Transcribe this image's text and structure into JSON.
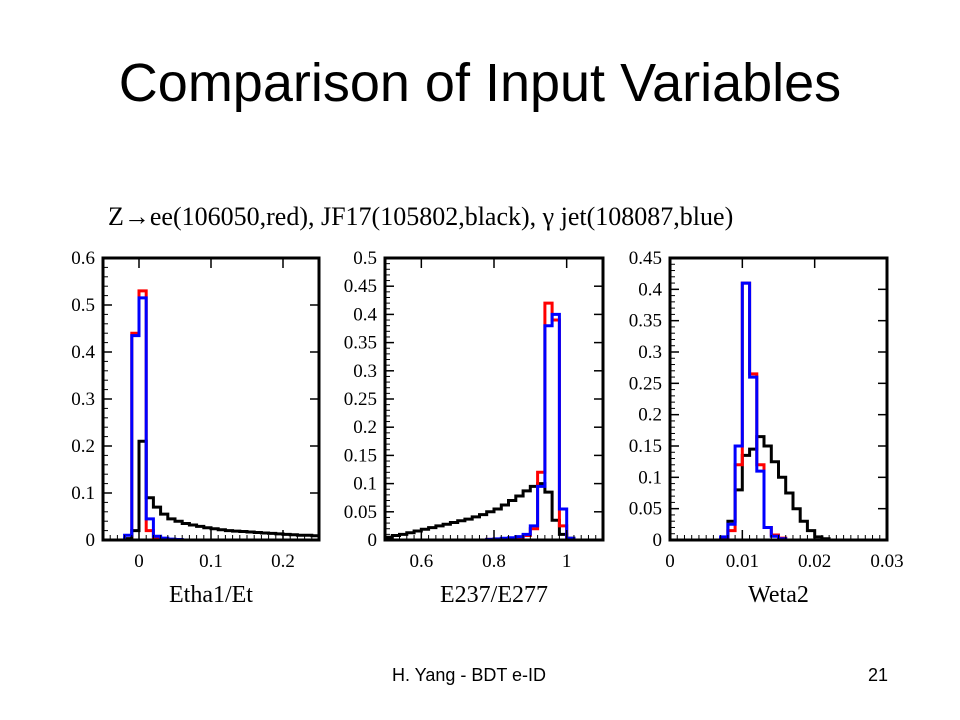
{
  "slide": {
    "title": "Comparison of Input Variables",
    "footer_left": "H. Yang - BDT e-ID",
    "page_number": "21"
  },
  "figure": {
    "title": "Z→ee(106050,red), JF17(105802,black), γ jet(108087,blue)"
  },
  "colors": {
    "red": "#ff0000",
    "black": "#000000",
    "blue": "#0000ff"
  },
  "chart_data": [
    {
      "type": "line",
      "xlabel": "Etha1/Et",
      "xlim": [
        -0.05,
        0.25
      ],
      "ylim": [
        0,
        0.6
      ],
      "xticks": [
        0,
        0.1,
        0.2
      ],
      "xtick_labels": [
        "0",
        "0.1",
        "0.2"
      ],
      "yticks": [
        0,
        0.1,
        0.2,
        0.3,
        0.4,
        0.5,
        0.6
      ],
      "ytick_labels": [
        "0",
        "0.1",
        "0.2",
        "0.3",
        "0.4",
        "0.5",
        "0.6"
      ],
      "bin_edges": [
        -0.05,
        -0.04,
        -0.03,
        -0.02,
        -0.01,
        0,
        0.01,
        0.02,
        0.03,
        0.04,
        0.05,
        0.06,
        0.07,
        0.08,
        0.09,
        0.1,
        0.11,
        0.12,
        0.13,
        0.14,
        0.15,
        0.16,
        0.17,
        0.18,
        0.19,
        0.2,
        0.21,
        0.22,
        0.23,
        0.24,
        0.25
      ],
      "series": [
        {
          "color": "red",
          "values": [
            0,
            0,
            0,
            0.002,
            0.44,
            0.53,
            0.02,
            0.005,
            0.002,
            0.001,
            0,
            0,
            0,
            0,
            0,
            0,
            0,
            0,
            0,
            0,
            0,
            0,
            0,
            0,
            0,
            0,
            0,
            0,
            0,
            0
          ]
        },
        {
          "color": "black",
          "values": [
            0,
            0,
            0,
            0.003,
            0.02,
            0.21,
            0.09,
            0.07,
            0.055,
            0.045,
            0.04,
            0.035,
            0.032,
            0.029,
            0.026,
            0.024,
            0.022,
            0.02,
            0.019,
            0.018,
            0.017,
            0.016,
            0.015,
            0.014,
            0.013,
            0.012,
            0.011,
            0.01,
            0.01,
            0.009
          ]
        },
        {
          "color": "blue",
          "values": [
            0,
            0,
            0,
            0.01,
            0.435,
            0.515,
            0.045,
            0.008,
            0.004,
            0.002,
            0.001,
            0,
            0,
            0,
            0,
            0,
            0,
            0,
            0,
            0,
            0,
            0,
            0,
            0,
            0,
            0,
            0,
            0,
            0,
            0
          ]
        }
      ]
    },
    {
      "type": "line",
      "xlabel": "E237/E277",
      "xlim": [
        0.5,
        1.1
      ],
      "ylim": [
        0,
        0.5
      ],
      "xticks": [
        0.6,
        0.8,
        1
      ],
      "xtick_labels": [
        "0.6",
        "0.8",
        "1"
      ],
      "yticks": [
        0,
        0.05,
        0.1,
        0.15,
        0.2,
        0.25,
        0.3,
        0.35,
        0.4,
        0.45,
        0.5
      ],
      "ytick_labels": [
        "0",
        "0.05",
        "0.1",
        "0.15",
        "0.2",
        "0.25",
        "0.3",
        "0.35",
        "0.4",
        "0.45",
        "0.5"
      ],
      "bin_edges": [
        0.5,
        0.52,
        0.54,
        0.56,
        0.58,
        0.6,
        0.62,
        0.64,
        0.66,
        0.68,
        0.7,
        0.72,
        0.74,
        0.76,
        0.78,
        0.8,
        0.82,
        0.84,
        0.86,
        0.88,
        0.9,
        0.92,
        0.94,
        0.96,
        0.98,
        1,
        1.02,
        1.04,
        1.06,
        1.08,
        1.1
      ],
      "series": [
        {
          "color": "black",
          "values": [
            0.005,
            0.008,
            0.01,
            0.013,
            0.016,
            0.019,
            0.022,
            0.025,
            0.028,
            0.031,
            0.034,
            0.037,
            0.041,
            0.045,
            0.05,
            0.055,
            0.062,
            0.07,
            0.078,
            0.087,
            0.095,
            0.1,
            0.085,
            0.035,
            0.01,
            0.003,
            0,
            0,
            0,
            0
          ]
        },
        {
          "color": "red",
          "values": [
            0,
            0,
            0,
            0,
            0,
            0,
            0,
            0,
            0,
            0,
            0,
            0,
            0,
            0,
            0.001,
            0.001,
            0.002,
            0.003,
            0.005,
            0.008,
            0.02,
            0.12,
            0.42,
            0.39,
            0.025,
            0.002,
            0,
            0,
            0,
            0
          ]
        },
        {
          "color": "blue",
          "values": [
            0,
            0,
            0,
            0,
            0,
            0,
            0,
            0,
            0,
            0,
            0,
            0,
            0,
            0,
            0.001,
            0.002,
            0.003,
            0.004,
            0.006,
            0.01,
            0.025,
            0.095,
            0.38,
            0.4,
            0.055,
            0.003,
            0,
            0,
            0,
            0
          ]
        }
      ]
    },
    {
      "type": "line",
      "xlabel": "Weta2",
      "xlim": [
        0,
        0.03
      ],
      "ylim": [
        0,
        0.45
      ],
      "xticks": [
        0,
        0.01,
        0.02,
        0.03
      ],
      "xtick_labels": [
        "0",
        "0.01",
        "0.02",
        "0.03"
      ],
      "yticks": [
        0,
        0.05,
        0.1,
        0.15,
        0.2,
        0.25,
        0.3,
        0.35,
        0.4,
        0.45
      ],
      "ytick_labels": [
        "0",
        "0.05",
        "0.1",
        "0.15",
        "0.2",
        "0.25",
        "0.3",
        "0.35",
        "0.4",
        "0.45"
      ],
      "bin_edges": [
        0,
        0.001,
        0.002,
        0.003,
        0.004,
        0.005,
        0.006,
        0.007,
        0.008,
        0.009,
        0.01,
        0.011,
        0.012,
        0.013,
        0.014,
        0.015,
        0.016,
        0.017,
        0.018,
        0.019,
        0.02,
        0.021,
        0.022,
        0.023,
        0.024,
        0.025,
        0.026,
        0.027,
        0.028,
        0.029,
        0.03
      ],
      "series": [
        {
          "color": "black",
          "values": [
            0,
            0,
            0,
            0,
            0,
            0,
            0,
            0.002,
            0.03,
            0.08,
            0.135,
            0.145,
            0.165,
            0.15,
            0.125,
            0.1,
            0.075,
            0.05,
            0.03,
            0.015,
            0.005,
            0.002,
            0,
            0,
            0,
            0,
            0,
            0,
            0,
            0
          ]
        },
        {
          "color": "red",
          "values": [
            0,
            0,
            0,
            0,
            0,
            0,
            0,
            0.002,
            0.015,
            0.12,
            0.41,
            0.265,
            0.12,
            0.02,
            0.008,
            0.003,
            0,
            0,
            0,
            0,
            0,
            0,
            0,
            0,
            0,
            0,
            0,
            0,
            0,
            0
          ]
        },
        {
          "color": "blue",
          "values": [
            0,
            0,
            0,
            0,
            0,
            0,
            0,
            0.005,
            0.025,
            0.15,
            0.41,
            0.26,
            0.11,
            0.02,
            0.006,
            0.002,
            0,
            0,
            0,
            0,
            0,
            0,
            0,
            0,
            0,
            0,
            0,
            0,
            0,
            0
          ]
        }
      ]
    }
  ]
}
